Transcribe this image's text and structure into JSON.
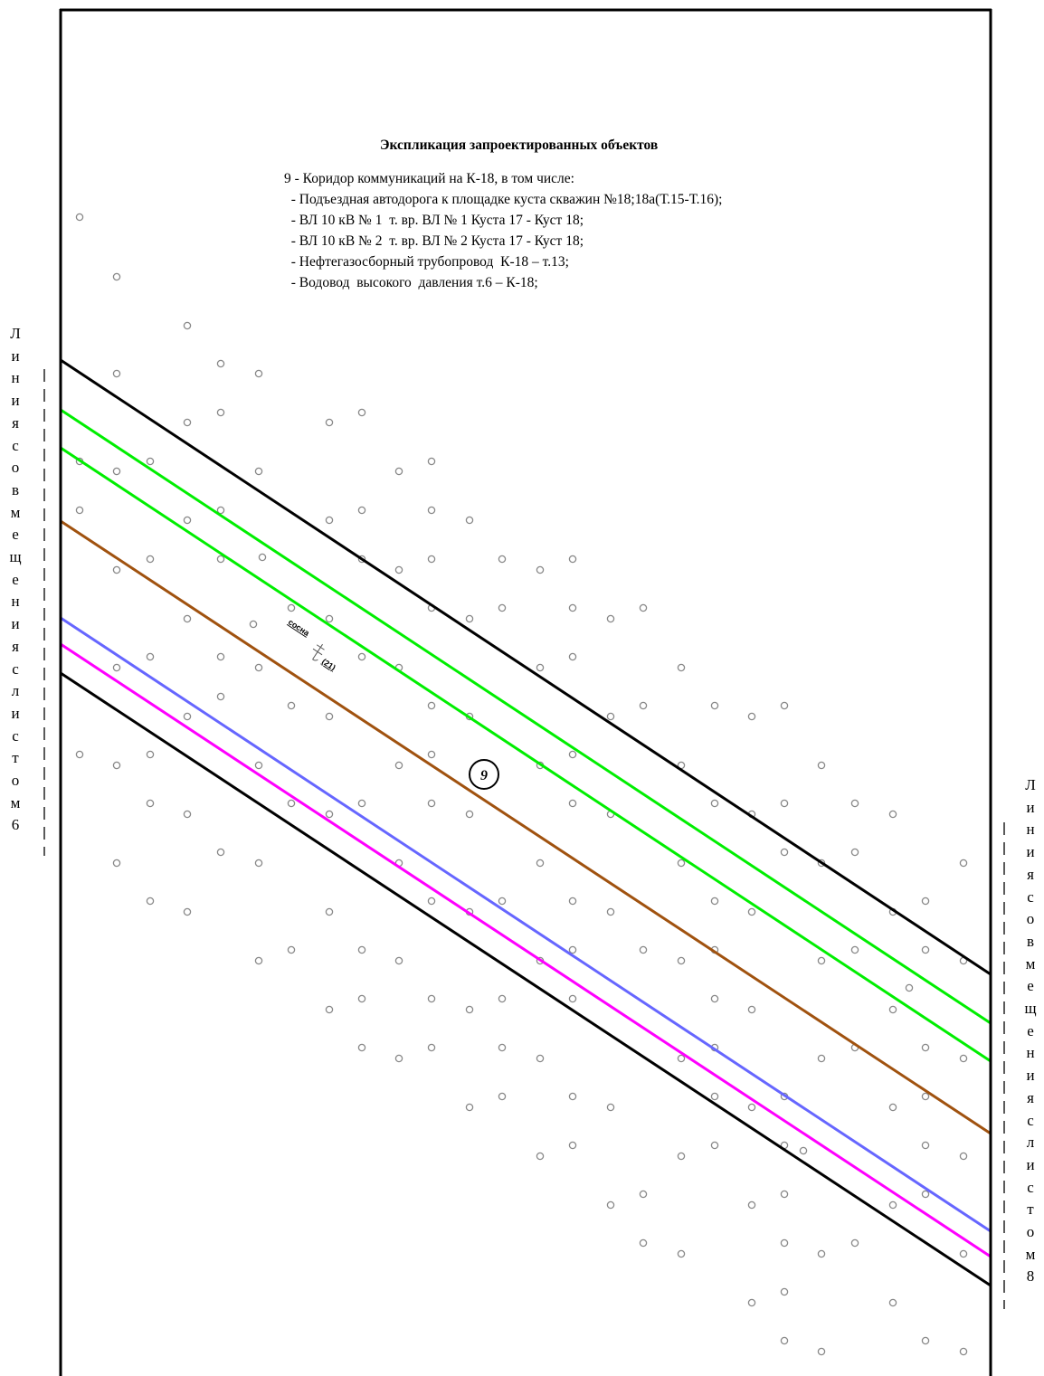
{
  "legend": {
    "title": "Экспликация запроектированных объектов",
    "items": [
      "9 - Коридор коммуникаций на К-18, в том числе:",
      "  - Подъездная автодорога к площадке куста скважин №18;18а(Т.15-Т.16);",
      "  - ВЛ 10 кВ № 1  т. вр. ВЛ № 1 Куста 17 - Куст 18;",
      "  - ВЛ 10 кВ № 2  т. вр. ВЛ № 2 Куста 17 - Куст 18;",
      "  - Нефтегазосборный трубопровод  К-18 – т.13;",
      "  - Водовод  высокого  давления т.6 – К-18;"
    ]
  },
  "match_lines": {
    "left": "Линия совмещения с листом 6",
    "right": "Линия совмещения с листом 8"
  },
  "corridor_label": "9",
  "tree_symbol": {
    "species": "сосна",
    "number": "(21)"
  },
  "colors": {
    "frame": "#000000",
    "corridor_boundary": "#000000",
    "green_lines": "#00ee00",
    "brown_line": "#a0520f",
    "blue_line": "#6666ff",
    "magenta_line": "#ff00ff",
    "forest_marks": "#888888"
  }
}
